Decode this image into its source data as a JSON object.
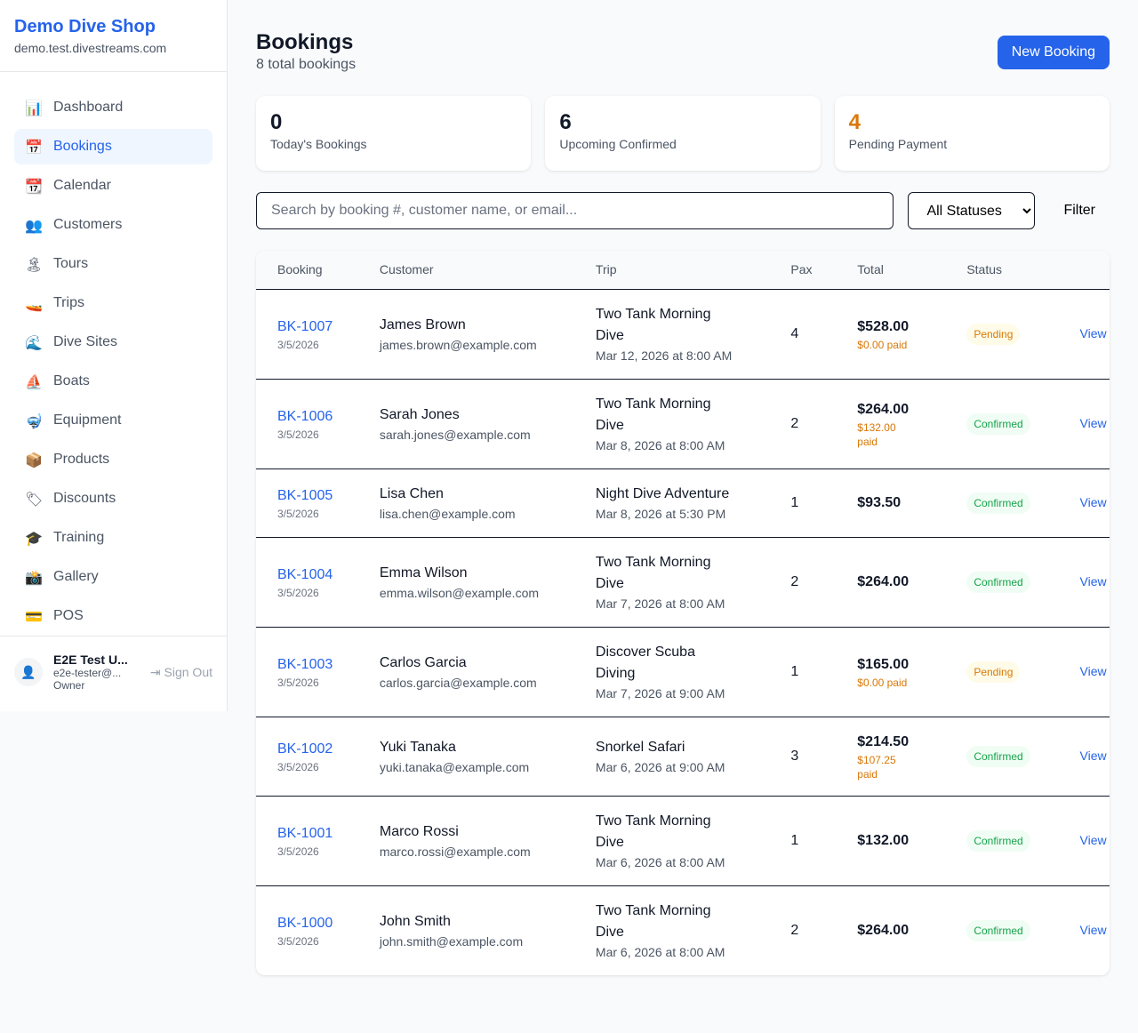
{
  "sidebar": {
    "shop_name": "Demo Dive Shop",
    "domain": "demo.test.divestreams.com",
    "items": [
      {
        "label": "Dashboard",
        "icon": "📊"
      },
      {
        "label": "Bookings",
        "icon": "📅",
        "active": true
      },
      {
        "label": "Calendar",
        "icon": "📆"
      },
      {
        "label": "Customers",
        "icon": "👥"
      },
      {
        "label": "Tours",
        "icon": "🏝"
      },
      {
        "label": "Trips",
        "icon": "🚤"
      },
      {
        "label": "Dive Sites",
        "icon": "🌊"
      },
      {
        "label": "Boats",
        "icon": "⛵"
      },
      {
        "label": "Equipment",
        "icon": "🤿"
      },
      {
        "label": "Products",
        "icon": "📦"
      },
      {
        "label": "Discounts",
        "icon": "🏷"
      },
      {
        "label": "Training",
        "icon": "🎓"
      },
      {
        "label": "Gallery",
        "icon": "📸"
      },
      {
        "label": "POS",
        "icon": "💳"
      }
    ],
    "user": {
      "name": "E2E Test U...",
      "email": "e2e-tester@...",
      "role": "Owner",
      "sign_out": "Sign Out"
    }
  },
  "header": {
    "title": "Bookings",
    "subtitle": "8 total bookings",
    "new_button": "New Booking"
  },
  "stats": [
    {
      "value": "0",
      "label": "Today's Bookings",
      "color": "#111827"
    },
    {
      "value": "6",
      "label": "Upcoming Confirmed",
      "color": "#111827"
    },
    {
      "value": "4",
      "label": "Pending Payment",
      "color": "#d97706"
    }
  ],
  "filters": {
    "search_placeholder": "Search by booking #, customer name, or email...",
    "status_selected": "All Statuses",
    "filter_label": "Filter"
  },
  "table": {
    "headers": [
      "Booking",
      "Customer",
      "Trip",
      "Pax",
      "Total",
      "Status",
      ""
    ],
    "rows": [
      {
        "id": "BK-1007",
        "date": "3/5/2026",
        "name": "James Brown",
        "email": "james.brown@example.com",
        "trip": "Two Tank Morning Dive",
        "when": "Mar 12, 2026 at 8:00 AM",
        "pax": "4",
        "total": "$528.00",
        "paid": "$0.00 paid",
        "status": "Pending",
        "action": "View"
      },
      {
        "id": "BK-1006",
        "date": "3/5/2026",
        "name": "Sarah Jones",
        "email": "sarah.jones@example.com",
        "trip": "Two Tank Morning Dive",
        "when": "Mar 8, 2026 at 8:00 AM",
        "pax": "2",
        "total": "$264.00",
        "paid": "$132.00 paid",
        "status": "Confirmed",
        "action": "View"
      },
      {
        "id": "BK-1005",
        "date": "3/5/2026",
        "name": "Lisa Chen",
        "email": "lisa.chen@example.com",
        "trip": "Night Dive Adventure",
        "when": "Mar 8, 2026 at 5:30 PM",
        "pax": "1",
        "total": "$93.50",
        "paid": null,
        "status": "Confirmed",
        "action": "View"
      },
      {
        "id": "BK-1004",
        "date": "3/5/2026",
        "name": "Emma Wilson",
        "email": "emma.wilson@example.com",
        "trip": "Two Tank Morning Dive",
        "when": "Mar 7, 2026 at 8:00 AM",
        "pax": "2",
        "total": "$264.00",
        "paid": null,
        "status": "Confirmed",
        "action": "View"
      },
      {
        "id": "BK-1003",
        "date": "3/5/2026",
        "name": "Carlos Garcia",
        "email": "carlos.garcia@example.com",
        "trip": "Discover Scuba Diving",
        "when": "Mar 7, 2026 at 9:00 AM",
        "pax": "1",
        "total": "$165.00",
        "paid": "$0.00 paid",
        "status": "Pending",
        "action": "View"
      },
      {
        "id": "BK-1002",
        "date": "3/5/2026",
        "name": "Yuki Tanaka",
        "email": "yuki.tanaka@example.com",
        "trip": "Snorkel Safari",
        "when": "Mar 6, 2026 at 9:00 AM",
        "pax": "3",
        "total": "$214.50",
        "paid": "$107.25 paid",
        "status": "Confirmed",
        "action": "View"
      },
      {
        "id": "BK-1001",
        "date": "3/5/2026",
        "name": "Marco Rossi",
        "email": "marco.rossi@example.com",
        "trip": "Two Tank Morning Dive",
        "when": "Mar 6, 2026 at 8:00 AM",
        "pax": "1",
        "total": "$132.00",
        "paid": null,
        "status": "Confirmed",
        "action": "View"
      },
      {
        "id": "BK-1000",
        "date": "3/5/2026",
        "name": "John Smith",
        "email": "john.smith@example.com",
        "trip": "Two Tank Morning Dive",
        "when": "Mar 6, 2026 at 8:00 AM",
        "pax": "2",
        "total": "$264.00",
        "paid": null,
        "status": "Confirmed",
        "action": "View"
      }
    ]
  }
}
